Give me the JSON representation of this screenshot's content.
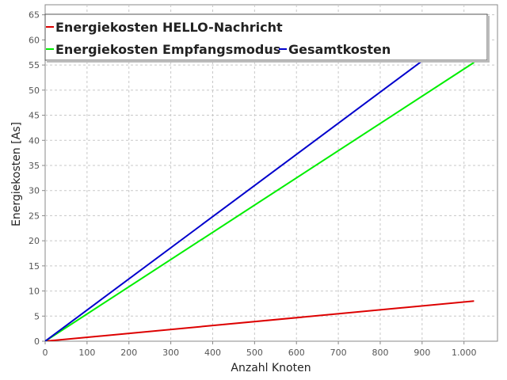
{
  "chart_data": {
    "type": "line",
    "title": "",
    "xlabel": "Anzahl Knoten",
    "ylabel": "Energiekosten [As]",
    "xlim": [
      0,
      1080
    ],
    "ylim": [
      0,
      67
    ],
    "x_ticks": [
      0,
      100,
      200,
      300,
      400,
      500,
      600,
      700,
      800,
      900,
      1000
    ],
    "x_tick_labels": [
      "0",
      "100",
      "200",
      "300",
      "400",
      "500",
      "600",
      "700",
      "800",
      "900",
      "1.000"
    ],
    "y_ticks": [
      0,
      5,
      10,
      15,
      20,
      25,
      30,
      35,
      40,
      45,
      50,
      55,
      60,
      65
    ],
    "y_tick_labels": [
      "0",
      "5",
      "10",
      "15",
      "20",
      "25",
      "30",
      "35",
      "40",
      "45",
      "50",
      "55",
      "60",
      "65"
    ],
    "grid": true,
    "legend_position": "top",
    "series": [
      {
        "name": "Energiekosten HELLO-Nachricht",
        "color": "#dd0000",
        "x": [
          0,
          1024
        ],
        "y": [
          0,
          8.0
        ]
      },
      {
        "name": "Energiekosten Empfangsmodus",
        "color": "#00ee00",
        "x": [
          0,
          1024
        ],
        "y": [
          0,
          55.5
        ]
      },
      {
        "name": "Gesamtkosten",
        "color": "#0000cc",
        "x": [
          0,
          1024
        ],
        "y": [
          0,
          63.5
        ]
      }
    ]
  }
}
